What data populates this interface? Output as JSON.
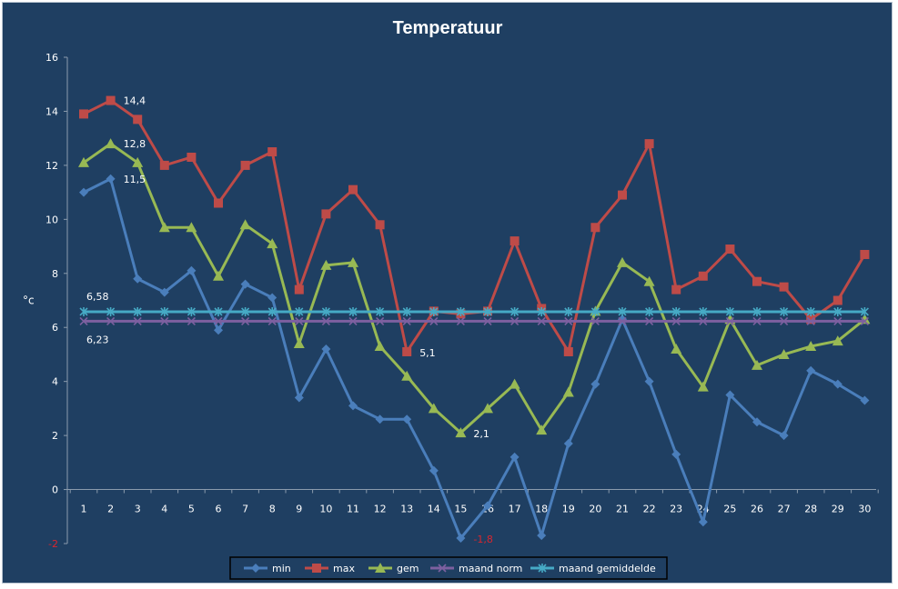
{
  "chart_data": {
    "type": "line",
    "title": "Temperatuur",
    "ylabel": "°c",
    "xlabel": "",
    "ylim": [
      -2,
      16
    ],
    "yticks": [
      -2,
      0,
      2,
      4,
      6,
      8,
      10,
      12,
      14,
      16
    ],
    "categories": [
      1,
      2,
      3,
      4,
      5,
      6,
      7,
      8,
      9,
      10,
      11,
      12,
      13,
      14,
      15,
      16,
      17,
      18,
      19,
      20,
      21,
      22,
      23,
      24,
      25,
      26,
      27,
      28,
      29,
      30
    ],
    "grid": false,
    "legend_position": "bottom",
    "background_color": "#1f3f62",
    "series": [
      {
        "name": "min",
        "color": "#4a7ebb",
        "marker": "diamond",
        "values": [
          11.0,
          11.5,
          7.8,
          7.3,
          8.1,
          5.9,
          7.6,
          7.1,
          3.4,
          5.2,
          3.1,
          2.6,
          2.6,
          0.7,
          -1.8,
          -0.6,
          1.2,
          -1.7,
          1.7,
          3.9,
          6.3,
          4.0,
          1.3,
          -1.2,
          3.5,
          2.5,
          2.0,
          4.4,
          3.9,
          3.3
        ]
      },
      {
        "name": "max",
        "color": "#be4b48",
        "marker": "square",
        "values": [
          13.9,
          14.4,
          13.7,
          12.0,
          12.3,
          10.6,
          12.0,
          12.5,
          7.4,
          10.2,
          11.1,
          9.8,
          5.1,
          6.6,
          6.5,
          6.6,
          9.2,
          6.7,
          5.1,
          9.7,
          10.9,
          12.8,
          7.4,
          7.9,
          8.9,
          7.7,
          7.5,
          6.3,
          7.0,
          8.7
        ]
      },
      {
        "name": "gem",
        "color": "#98b954",
        "marker": "triangle",
        "values": [
          12.1,
          12.8,
          12.1,
          9.7,
          9.7,
          7.9,
          9.8,
          9.1,
          5.4,
          8.3,
          8.4,
          5.3,
          4.2,
          3.0,
          2.1,
          3.0,
          3.9,
          2.2,
          3.6,
          6.6,
          8.4,
          7.7,
          5.2,
          3.8,
          6.3,
          4.6,
          5.0,
          5.3,
          5.5,
          6.3
        ]
      },
      {
        "name": "maand norm",
        "color": "#7d60a0",
        "marker": "x",
        "values": [
          6.23,
          6.23,
          6.23,
          6.23,
          6.23,
          6.23,
          6.23,
          6.23,
          6.23,
          6.23,
          6.23,
          6.23,
          6.23,
          6.23,
          6.23,
          6.23,
          6.23,
          6.23,
          6.23,
          6.23,
          6.23,
          6.23,
          6.23,
          6.23,
          6.23,
          6.23,
          6.23,
          6.23,
          6.23,
          6.23
        ]
      },
      {
        "name": "maand gemiddelde",
        "color": "#46aac5",
        "marker": "star",
        "values": [
          6.58,
          6.58,
          6.58,
          6.58,
          6.58,
          6.58,
          6.58,
          6.58,
          6.58,
          6.58,
          6.58,
          6.58,
          6.58,
          6.58,
          6.58,
          6.58,
          6.58,
          6.58,
          6.58,
          6.58,
          6.58,
          6.58,
          6.58,
          6.58,
          6.58,
          6.58,
          6.58,
          6.58,
          6.58,
          6.58
        ]
      }
    ],
    "data_labels": [
      {
        "text": "14,4",
        "series": "max",
        "x": 2,
        "y": 14.4
      },
      {
        "text": "12,8",
        "series": "gem",
        "x": 2,
        "y": 12.8
      },
      {
        "text": "11,5",
        "series": "min",
        "x": 2,
        "y": 11.5
      },
      {
        "text": "6,58",
        "series": "maand gemiddelde",
        "x": 1,
        "y": 6.58
      },
      {
        "text": "6,23",
        "series": "maand norm",
        "x": 1,
        "y": 6.23
      },
      {
        "text": "5,1",
        "series": "max",
        "x": 13,
        "y": 5.1
      },
      {
        "text": "2,1",
        "series": "gem",
        "x": 15,
        "y": 2.1
      },
      {
        "text": "-1,8",
        "series": "min",
        "x": 15,
        "y": -1.8
      }
    ]
  }
}
